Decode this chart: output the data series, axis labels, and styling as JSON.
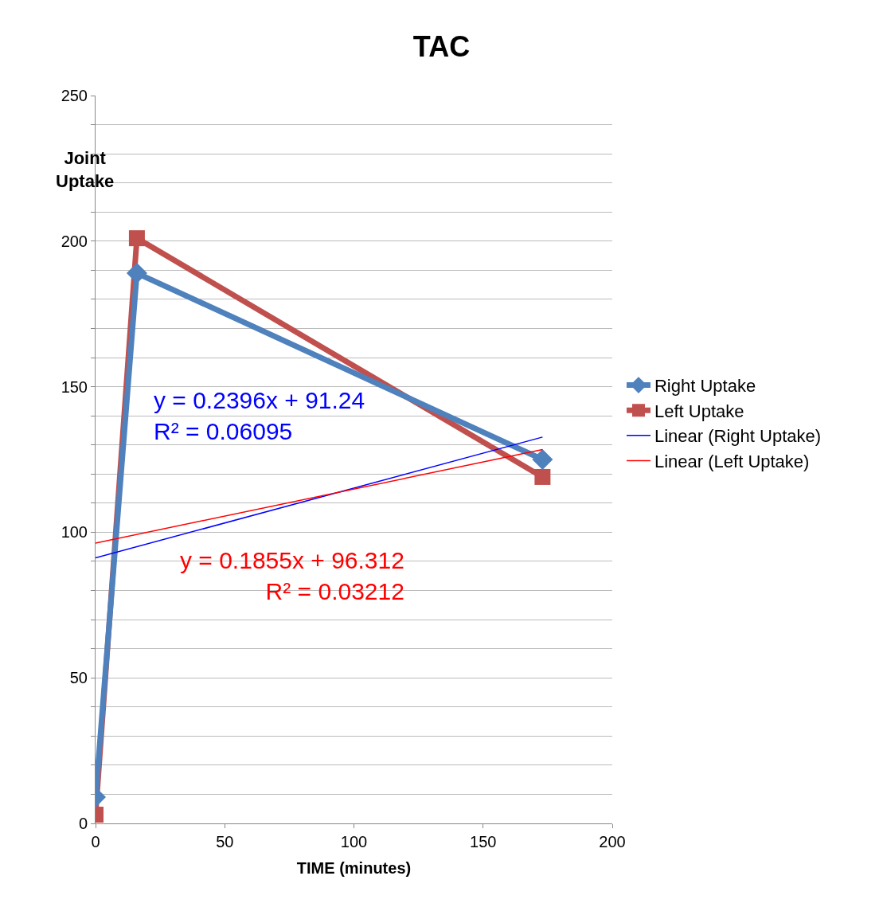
{
  "chart_data": {
    "type": "line",
    "title": "TAC",
    "xlabel": "TIME (minutes)",
    "ylabel": "Joint\nUptake",
    "xlim": [
      0,
      200
    ],
    "xticks": [
      0,
      50,
      100,
      150,
      200
    ],
    "ylim": [
      0,
      250
    ],
    "yticks": [
      0,
      {
        "value": 10,
        "label": null
      },
      {
        "value": 20,
        "label": null
      },
      {
        "value": 30,
        "label": null
      },
      {
        "value": 40,
        "label": null
      },
      50,
      {
        "value": 60,
        "label": null
      },
      {
        "value": 70,
        "label": null
      },
      {
        "value": 80,
        "label": null
      },
      {
        "value": 90,
        "label": null
      },
      100,
      {
        "value": 110,
        "label": null
      },
      {
        "value": 120,
        "label": null
      },
      {
        "value": 130,
        "label": null
      },
      {
        "value": 140,
        "label": null
      },
      150,
      {
        "value": 160,
        "label": null
      },
      {
        "value": 170,
        "label": null
      },
      {
        "value": 180,
        "label": null
      },
      {
        "value": 190,
        "label": null
      },
      200,
      {
        "value": 210,
        "label": null
      },
      {
        "value": 220,
        "label": null
      },
      {
        "value": 230,
        "label": null
      },
      {
        "value": 240,
        "label": null
      },
      250
    ],
    "grid": "y",
    "legend": "right",
    "series": [
      {
        "name": "Right Uptake",
        "color": "#4f81bd",
        "marker": "diamond",
        "x": [
          0,
          16,
          173
        ],
        "values": [
          9,
          189,
          125
        ]
      },
      {
        "name": "Left Uptake",
        "color": "#c0504d",
        "marker": "square",
        "x": [
          0,
          16,
          173
        ],
        "values": [
          3,
          201,
          119
        ]
      },
      {
        "name": "Linear (Right Uptake)",
        "color": "#0000ff",
        "marker": "none",
        "x": [
          0,
          173
        ],
        "values": [
          91.2,
          132.7
        ]
      },
      {
        "name": "Linear (Left Uptake)",
        "color": "#ff0000",
        "marker": "none",
        "x": [
          0,
          173
        ],
        "values": [
          96.3,
          128.4
        ]
      }
    ],
    "annotations": [
      "y = 0.2396x + 91.24\nR² = 0.06095",
      "y = 0.1855x + 96.312\nR² = 0.03212"
    ]
  }
}
